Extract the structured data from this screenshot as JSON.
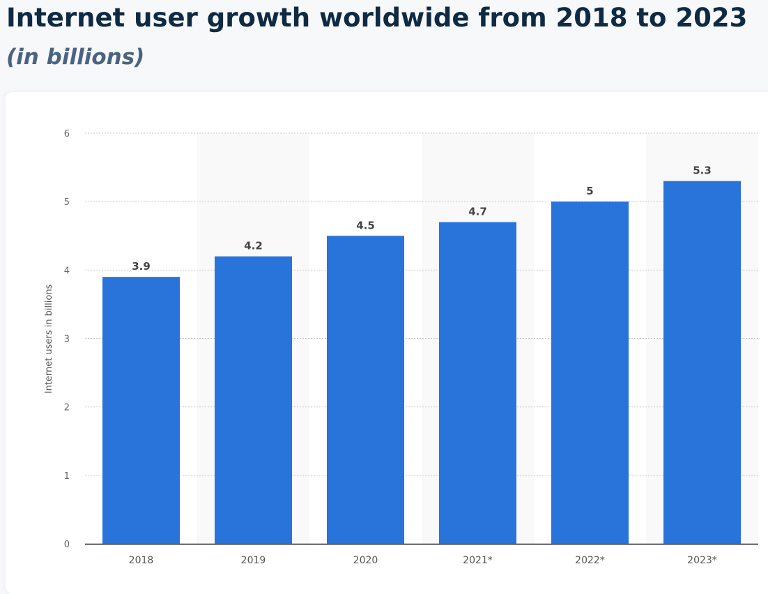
{
  "chart_data": {
    "type": "bar",
    "title": "Internet user growth worldwide from 2018 to 2023",
    "subtitle": "(in billions)",
    "xlabel": "",
    "ylabel": "Internet users in billions",
    "categories": [
      "2018",
      "2019",
      "2020",
      "2021*",
      "2022*",
      "2023*"
    ],
    "values": [
      3.9,
      4.2,
      4.5,
      4.7,
      5,
      5.3
    ],
    "ylim": [
      0,
      6
    ],
    "yticks": [
      0,
      1,
      2,
      3,
      4,
      5,
      6
    ],
    "grid": true,
    "data_labels": true,
    "bar_color": "#2874db",
    "band_color": "#f9f9f9"
  }
}
